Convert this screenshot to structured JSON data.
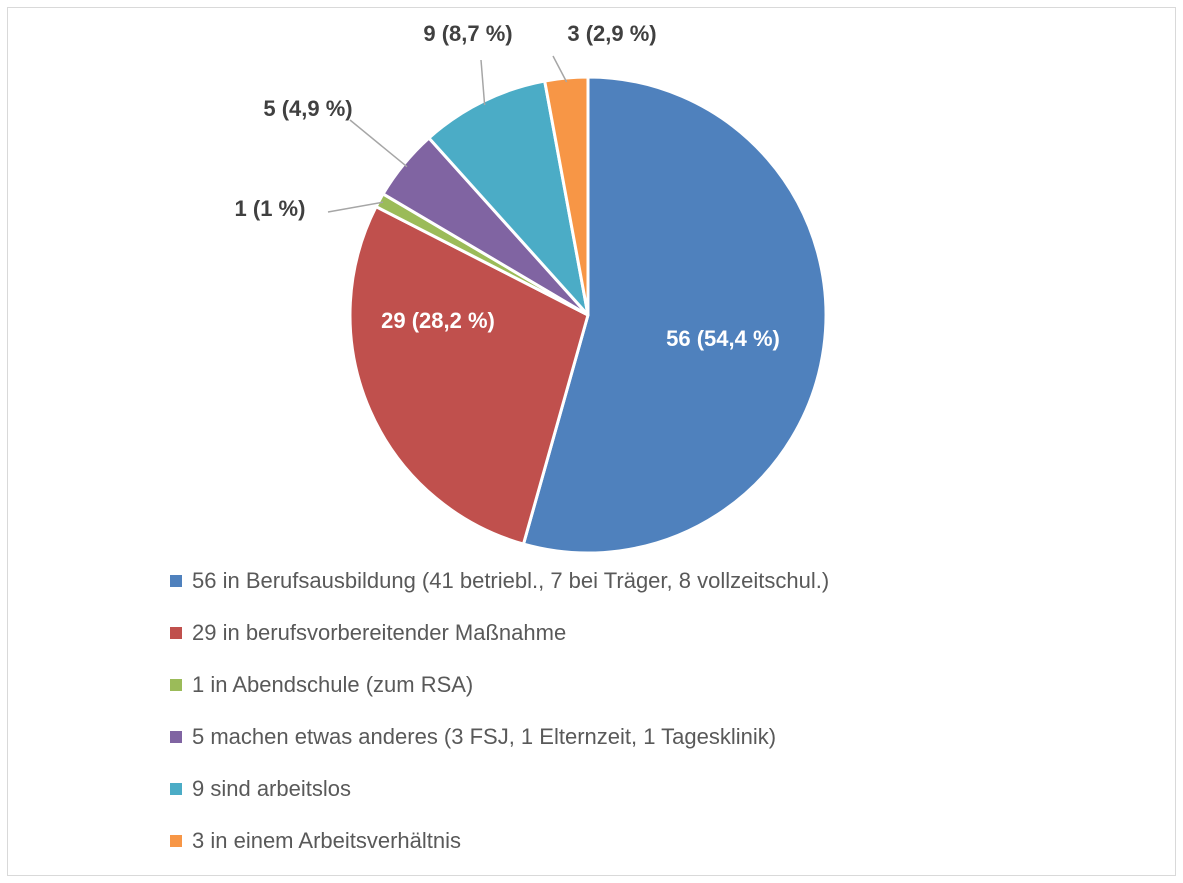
{
  "chart_data": {
    "type": "pie",
    "categories": [
      "56 in Berufsausbildung (41 betriebl., 7 bei Träger, 8 vollzeitschul.)",
      "29 in berufsvorbereitender Maßnahme",
      "1 in Abendschule (zum RSA)",
      "5 machen etwas anderes (3 FSJ, 1 Elternzeit, 1 Tagesklinik)",
      "9 sind arbeitslos",
      "3 in einem Arbeitsverhältnis"
    ],
    "values": [
      56,
      29,
      1,
      5,
      9,
      3
    ],
    "value_labels": [
      "56 (54,4 %)",
      "29 (28,2 %)",
      "1 (1 %)",
      "5 (4,9 %)",
      "9 (8,7 %)",
      "3 (2,9 %)"
    ],
    "colors": [
      "#4f81bd",
      "#c0504d",
      "#9bbb59",
      "#8064a2",
      "#4bacc6",
      "#f79646"
    ],
    "legend": "bottom"
  }
}
